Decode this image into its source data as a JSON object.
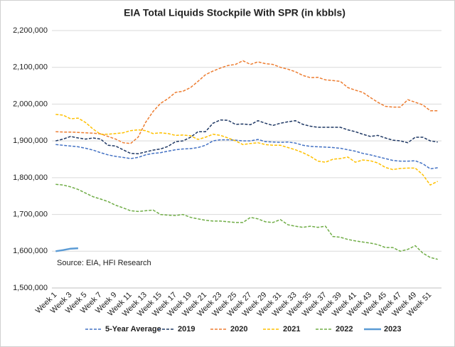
{
  "chart_data": {
    "type": "line",
    "title": "EIA Total Liquids Stockpile With SPR (in kbbls)",
    "annotation": "Source: EIA, HFI Research",
    "categories": [
      "Week 1",
      null,
      "Week 3",
      null,
      "Week 5",
      null,
      "Week 7",
      null,
      "Week 9",
      null,
      "Week 11",
      null,
      "Week 13",
      null,
      "Week 15",
      null,
      "Week 17",
      null,
      "Week 19",
      null,
      "Week 21",
      null,
      "Week 23",
      null,
      "Week 25",
      null,
      "Week 27",
      null,
      "Week 29",
      null,
      "Week 31",
      null,
      "Week 33",
      null,
      "Week 35",
      null,
      "Week 37",
      null,
      "Week 39",
      null,
      "Week 41",
      null,
      "Week 43",
      null,
      "Week 45",
      null,
      "Week 47",
      null,
      "Week 49",
      null,
      "Week 51",
      null
    ],
    "ylim": [
      1500000,
      2200000
    ],
    "yticks": [
      {
        "value": 1500000,
        "label": "1,500,000"
      },
      {
        "value": 1600000,
        "label": "1,600,000"
      },
      {
        "value": 1700000,
        "label": "1,700,000"
      },
      {
        "value": 1800000,
        "label": "1,800,000"
      },
      {
        "value": 1900000,
        "label": "1,900,000"
      },
      {
        "value": 2000000,
        "label": "2,000,000"
      },
      {
        "value": 2100000,
        "label": "2,100,000"
      },
      {
        "value": 2200000,
        "label": "2,200,000"
      }
    ],
    "grid": true,
    "legend": "bottom",
    "series": [
      {
        "name": "5-Year Average",
        "color": "#4472c4",
        "dashed": true,
        "values": [
          1890000,
          1888000,
          1886000,
          1884000,
          1880000,
          1875000,
          1868000,
          1862000,
          1858000,
          1855000,
          1852000,
          1855000,
          1862000,
          1866000,
          1868000,
          1872000,
          1876000,
          1878000,
          1879000,
          1882000,
          1888000,
          1900000,
          1903000,
          1903000,
          1902000,
          1900000,
          1900000,
          1904000,
          1898000,
          1897000,
          1896000,
          1897000,
          1894000,
          1888000,
          1885000,
          1884000,
          1883000,
          1882000,
          1880000,
          1876000,
          1872000,
          1866000,
          1862000,
          1857000,
          1852000,
          1847000,
          1845000,
          1845000,
          1846000,
          1838000,
          1824000,
          1827000
        ]
      },
      {
        "name": "2019",
        "color": "#1f3864",
        "dashed": true,
        "values": [
          1900000,
          1905000,
          1912000,
          1908000,
          1905000,
          1908000,
          1905000,
          1888000,
          1886000,
          1876000,
          1866000,
          1865000,
          1870000,
          1875000,
          1878000,
          1885000,
          1898000,
          1900000,
          1910000,
          1925000,
          1925000,
          1948000,
          1957000,
          1956000,
          1945000,
          1946000,
          1944000,
          1955000,
          1948000,
          1942000,
          1948000,
          1952000,
          1955000,
          1945000,
          1940000,
          1937000,
          1937000,
          1937000,
          1937000,
          1930000,
          1925000,
          1918000,
          1912000,
          1915000,
          1908000,
          1902000,
          1900000,
          1895000,
          1910000,
          1910000,
          1900000,
          1897000
        ]
      },
      {
        "name": "2020",
        "color": "#ed7d31",
        "dashed": true,
        "values": [
          1925000,
          1924000,
          1924000,
          1923000,
          1922000,
          1921000,
          1919000,
          1912000,
          1905000,
          1895000,
          1893000,
          1910000,
          1950000,
          1980000,
          2002000,
          2015000,
          2032000,
          2035000,
          2045000,
          2062000,
          2080000,
          2090000,
          2098000,
          2105000,
          2108000,
          2118000,
          2108000,
          2115000,
          2110000,
          2108000,
          2100000,
          2095000,
          2088000,
          2078000,
          2072000,
          2073000,
          2066000,
          2064000,
          2062000,
          2045000,
          2038000,
          2032000,
          2018000,
          2005000,
          1994000,
          1992000,
          1992000,
          2012000,
          2005000,
          1998000,
          1982000,
          1982000
        ]
      },
      {
        "name": "2021",
        "color": "#ffc000",
        "dashed": true,
        "values": [
          1972000,
          1970000,
          1960000,
          1962000,
          1950000,
          1932000,
          1918000,
          1918000,
          1920000,
          1922000,
          1928000,
          1930000,
          1928000,
          1920000,
          1922000,
          1920000,
          1915000,
          1916000,
          1914000,
          1904000,
          1910000,
          1918000,
          1915000,
          1908000,
          1900000,
          1890000,
          1893000,
          1895000,
          1890000,
          1888000,
          1888000,
          1882000,
          1876000,
          1868000,
          1858000,
          1845000,
          1842000,
          1850000,
          1852000,
          1856000,
          1842000,
          1848000,
          1846000,
          1840000,
          1828000,
          1822000,
          1825000,
          1826000,
          1826000,
          1808000,
          1780000,
          1790000
        ]
      },
      {
        "name": "2022",
        "color": "#70ad47",
        "dashed": true,
        "values": [
          1782000,
          1780000,
          1775000,
          1768000,
          1758000,
          1748000,
          1742000,
          1735000,
          1725000,
          1718000,
          1710000,
          1708000,
          1710000,
          1712000,
          1700000,
          1698000,
          1697000,
          1700000,
          1692000,
          1688000,
          1684000,
          1682000,
          1682000,
          1680000,
          1678000,
          1678000,
          1692000,
          1688000,
          1680000,
          1678000,
          1686000,
          1672000,
          1668000,
          1665000,
          1668000,
          1665000,
          1668000,
          1640000,
          1638000,
          1632000,
          1628000,
          1625000,
          1622000,
          1618000,
          1610000,
          1610000,
          1600000,
          1605000,
          1615000,
          1595000,
          1583000,
          1578000
        ]
      },
      {
        "name": "2023",
        "color": "#5b9bd5",
        "dashed": false,
        "values": [
          1600000,
          1603000,
          1607000,
          1608000,
          null,
          null,
          null,
          null,
          null,
          null,
          null,
          null,
          null,
          null,
          null,
          null,
          null,
          null,
          null,
          null,
          null,
          null,
          null,
          null,
          null,
          null,
          null,
          null,
          null,
          null,
          null,
          null,
          null,
          null,
          null,
          null,
          null,
          null,
          null,
          null,
          null,
          null,
          null,
          null,
          null,
          null,
          null,
          null,
          null,
          null,
          null,
          null
        ]
      }
    ]
  }
}
